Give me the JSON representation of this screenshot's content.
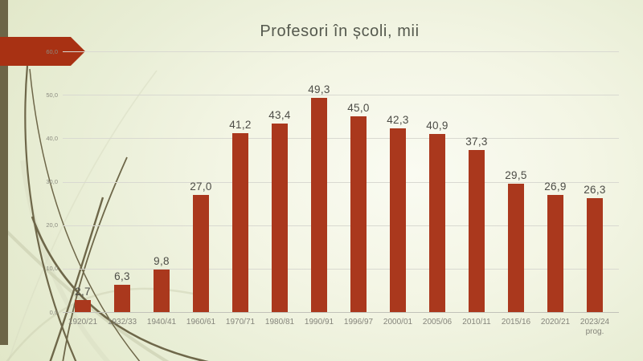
{
  "slide": {
    "title": "Profesori în școli, mii"
  },
  "decor": {
    "accent_bar_color": "#6c6547",
    "arrow_color": "#a83113",
    "grass_dark": "#6e6749",
    "grass_light": "#ccd0b2",
    "grass_pale": "#d8dcc2"
  },
  "chart_data": {
    "type": "bar",
    "title": "Profesori în școli, mii",
    "categories": [
      "1920/21",
      "1932/33",
      "1940/41",
      "1960/61",
      "1970/71",
      "1980/81",
      "1990/91",
      "1996/97",
      "2000/01",
      "2005/06",
      "2010/11",
      "2015/16",
      "2020/21",
      "2023/24\nprog."
    ],
    "values": [
      2.7,
      6.3,
      9.8,
      27.0,
      41.2,
      43.4,
      49.3,
      45.0,
      42.3,
      40.9,
      37.3,
      29.5,
      26.9,
      26.3
    ],
    "value_labels": [
      "2,7",
      "6,3",
      "9,8",
      "27,0",
      "41,2",
      "43,4",
      "49,3",
      "45,0",
      "42,3",
      "40,9",
      "37,3",
      "29,5",
      "26,9",
      "26,3"
    ],
    "y_ticks": [
      "0,0",
      "10,0",
      "20,0",
      "30,0",
      "40,0",
      "50,0",
      "60,0"
    ],
    "xlabel": "",
    "ylabel": "",
    "ylim": [
      0,
      60
    ],
    "grid": true,
    "legend": "none",
    "bar_color": "#aa381d",
    "label_color": "#4c4c46",
    "axis_text_color": "#8c8c81"
  }
}
